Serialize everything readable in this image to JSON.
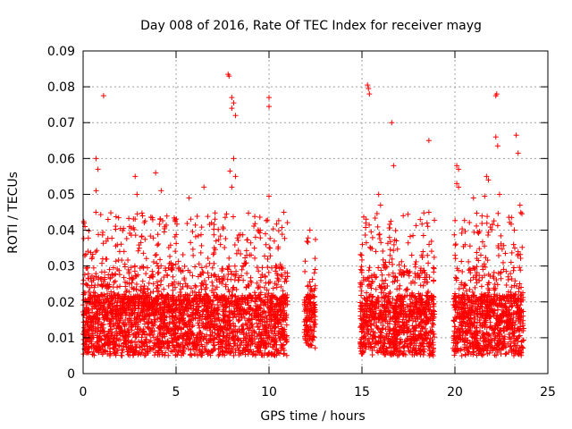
{
  "chart_data": {
    "type": "scatter",
    "title": "Day 008 of 2016, Rate Of TEC Index for receiver mayg",
    "xlabel": "GPS time / hours",
    "ylabel": "ROTI / TECUs",
    "xlim": [
      0,
      25
    ],
    "ylim": [
      0,
      0.09
    ],
    "x_ticks": [
      0,
      5,
      10,
      15,
      20,
      25
    ],
    "x_tick_labels": [
      "0",
      "5",
      "10",
      "15",
      "20",
      "25"
    ],
    "y_ticks": [
      0,
      0.01,
      0.02,
      0.03,
      0.04,
      0.05,
      0.06,
      0.07,
      0.08,
      0.09
    ],
    "y_tick_labels": [
      "0",
      "0.01",
      "0.02",
      "0.03",
      "0.04",
      "0.05",
      "0.06",
      "0.07",
      "0.08",
      "0.09"
    ],
    "grid": true,
    "marker": "+",
    "marker_color": "#ff0000",
    "series": [
      {
        "name": "ROTI",
        "data_segments": [
          {
            "x_range": [
              0.0,
              11.0
            ],
            "typical_range": [
              0.005,
              0.03
            ]
          },
          {
            "x_range": [
              11.9,
              12.5
            ],
            "typical_range": [
              0.007,
              0.025
            ]
          },
          {
            "x_range": [
              14.9,
              18.9
            ],
            "typical_range": [
              0.005,
              0.03
            ]
          },
          {
            "x_range": [
              19.9,
              23.7
            ],
            "typical_range": [
              0.005,
              0.03
            ]
          }
        ],
        "outliers": [
          {
            "x": 0.05,
            "y": 0.042
          },
          {
            "x": 0.1,
            "y": 0.041
          },
          {
            "x": 0.7,
            "y": 0.06
          },
          {
            "x": 0.8,
            "y": 0.057
          },
          {
            "x": 0.7,
            "y": 0.051
          },
          {
            "x": 1.1,
            "y": 0.0775
          },
          {
            "x": 2.8,
            "y": 0.055
          },
          {
            "x": 2.9,
            "y": 0.05
          },
          {
            "x": 3.2,
            "y": 0.044
          },
          {
            "x": 3.9,
            "y": 0.056
          },
          {
            "x": 4.2,
            "y": 0.051
          },
          {
            "x": 5.7,
            "y": 0.049
          },
          {
            "x": 6.5,
            "y": 0.052
          },
          {
            "x": 7.8,
            "y": 0.0835
          },
          {
            "x": 7.85,
            "y": 0.083
          },
          {
            "x": 8.0,
            "y": 0.077
          },
          {
            "x": 8.1,
            "y": 0.0755
          },
          {
            "x": 8.0,
            "y": 0.074
          },
          {
            "x": 8.2,
            "y": 0.072
          },
          {
            "x": 8.1,
            "y": 0.06
          },
          {
            "x": 7.9,
            "y": 0.0565
          },
          {
            "x": 8.2,
            "y": 0.055
          },
          {
            "x": 8.0,
            "y": 0.052
          },
          {
            "x": 10.0,
            "y": 0.077
          },
          {
            "x": 10.0,
            "y": 0.0745
          },
          {
            "x": 10.0,
            "y": 0.0495
          },
          {
            "x": 10.8,
            "y": 0.045
          },
          {
            "x": 12.2,
            "y": 0.04
          },
          {
            "x": 15.3,
            "y": 0.0805
          },
          {
            "x": 15.35,
            "y": 0.0795
          },
          {
            "x": 15.4,
            "y": 0.078
          },
          {
            "x": 15.9,
            "y": 0.05
          },
          {
            "x": 16.0,
            "y": 0.047
          },
          {
            "x": 16.6,
            "y": 0.07
          },
          {
            "x": 16.7,
            "y": 0.058
          },
          {
            "x": 18.6,
            "y": 0.065
          },
          {
            "x": 18.6,
            "y": 0.045
          },
          {
            "x": 20.1,
            "y": 0.058
          },
          {
            "x": 20.2,
            "y": 0.057
          },
          {
            "x": 20.1,
            "y": 0.053
          },
          {
            "x": 20.2,
            "y": 0.052
          },
          {
            "x": 21.0,
            "y": 0.049
          },
          {
            "x": 21.7,
            "y": 0.055
          },
          {
            "x": 21.8,
            "y": 0.054
          },
          {
            "x": 21.6,
            "y": 0.0495
          },
          {
            "x": 22.2,
            "y": 0.066
          },
          {
            "x": 22.3,
            "y": 0.0635
          },
          {
            "x": 22.2,
            "y": 0.0775
          },
          {
            "x": 22.25,
            "y": 0.078
          },
          {
            "x": 22.4,
            "y": 0.05
          },
          {
            "x": 23.3,
            "y": 0.0665
          },
          {
            "x": 23.4,
            "y": 0.0615
          },
          {
            "x": 23.5,
            "y": 0.047
          },
          {
            "x": 23.4,
            "y": 0.034
          },
          {
            "x": 23.2,
            "y": 0.04
          }
        ]
      }
    ]
  }
}
